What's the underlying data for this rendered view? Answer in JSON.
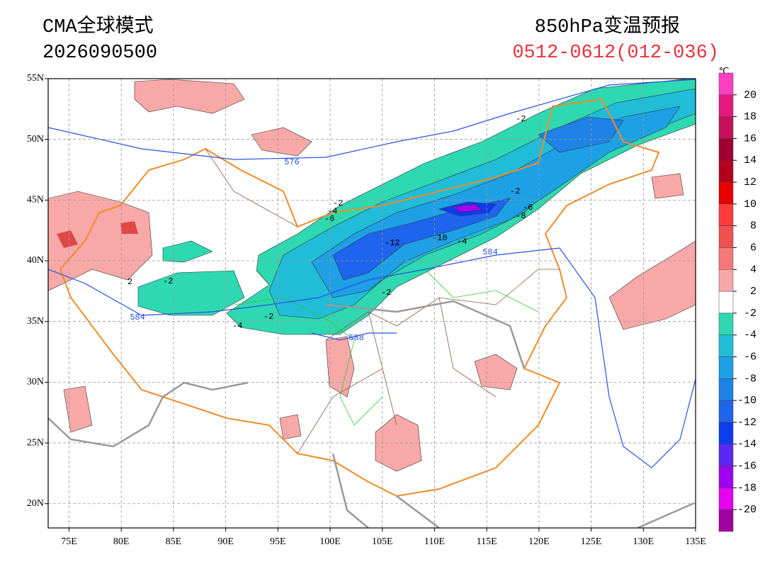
{
  "header": {
    "model": "CMA全球模式",
    "init_time": "2026090500",
    "product": "850hPa变温预报",
    "period": "0512-0612(012-036)"
  },
  "map": {
    "lon_range": [
      73,
      135
    ],
    "lat_range": [
      18,
      55
    ],
    "lon_ticks": [
      {
        "value": 75,
        "label": "75E"
      },
      {
        "value": 80,
        "label": "80E"
      },
      {
        "value": 85,
        "label": "85E"
      },
      {
        "value": 90,
        "label": "90E"
      },
      {
        "value": 95,
        "label": "95E"
      },
      {
        "value": 100,
        "label": "100E"
      },
      {
        "value": 105,
        "label": "105E"
      },
      {
        "value": 110,
        "label": "110E"
      },
      {
        "value": 115,
        "label": "115E"
      },
      {
        "value": 120,
        "label": "120E"
      },
      {
        "value": 125,
        "label": "125E"
      },
      {
        "value": 130,
        "label": "130E"
      },
      {
        "value": 135,
        "label": "135E"
      }
    ],
    "lat_ticks": [
      {
        "value": 55,
        "label": "55N"
      },
      {
        "value": 50,
        "label": "50N"
      },
      {
        "value": 45,
        "label": "45N"
      },
      {
        "value": 40,
        "label": "40N"
      },
      {
        "value": 35,
        "label": "35N"
      },
      {
        "value": 30,
        "label": "30N"
      },
      {
        "value": 25,
        "label": "25N"
      },
      {
        "value": 20,
        "label": "20N"
      }
    ],
    "grid": true,
    "height_labels": [
      "576",
      "584",
      "584",
      "588"
    ],
    "temp_labels": [
      "-2",
      "-2",
      "-4",
      "-6",
      "-12",
      "-10",
      "-4",
      "-6",
      "-8",
      "-2",
      "-2",
      "-2",
      "-4",
      "2",
      "-2"
    ]
  },
  "colorbar": {
    "unit": "℃",
    "levels": [
      20,
      18,
      16,
      14,
      12,
      10,
      8,
      6,
      4,
      2,
      -2,
      -4,
      -6,
      -8,
      -10,
      -12,
      -14,
      -16,
      -18,
      -20
    ],
    "colors": [
      "#ff3fbf",
      "#e6197f",
      "#c8105a",
      "#a00030",
      "#b4001e",
      "#e60000",
      "#ff3b3b",
      "#f05050",
      "#f47878",
      "#f9a8a8",
      "#ffffff",
      "#2ed8b0",
      "#20bcd8",
      "#1ea0e6",
      "#1e82e6",
      "#1e64ec",
      "#0a3cf0",
      "#5a28f0",
      "#a000f0",
      "#e600f0",
      "#a000a0"
    ]
  }
}
